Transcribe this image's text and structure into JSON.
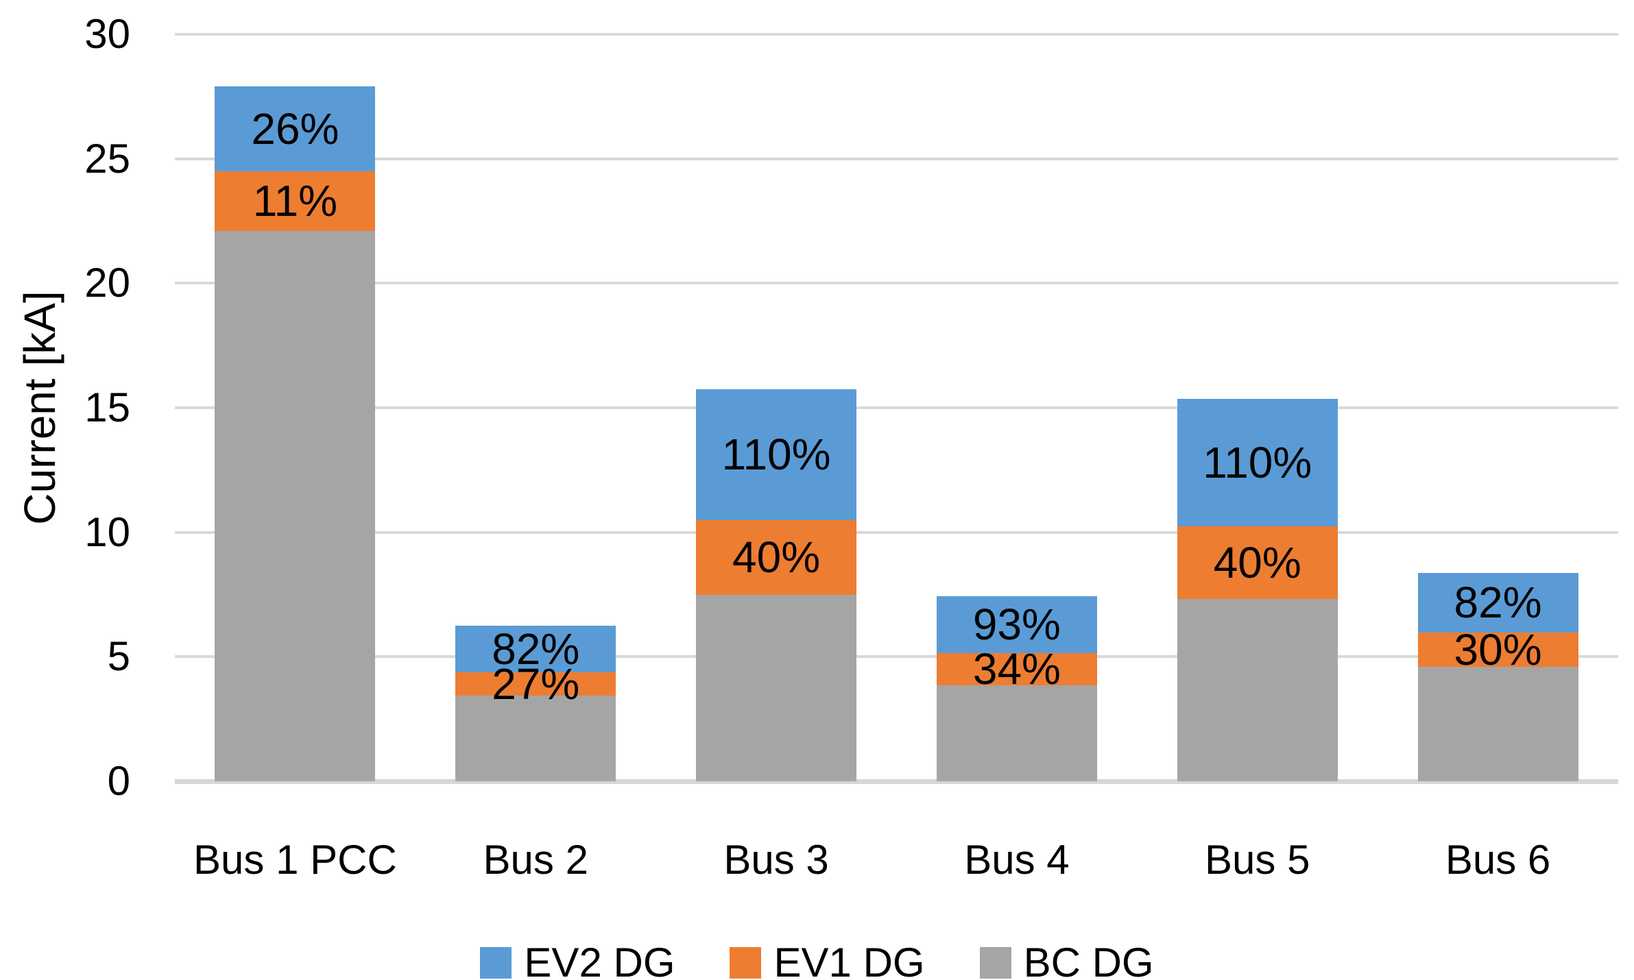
{
  "chart_data": {
    "type": "bar",
    "subtype": "stacked-overlay",
    "title": "",
    "xlabel": "",
    "ylabel": "Current [kA]",
    "ylim": [
      0,
      30
    ],
    "yticks": [
      0,
      5,
      10,
      15,
      20,
      25,
      30
    ],
    "grid": "horizontal",
    "legend_position": "bottom",
    "categories": [
      "Bus 1 PCC",
      "Bus 2",
      "Bus 3",
      "Bus 4",
      "Bus 5",
      "Bus 6"
    ],
    "series": [
      {
        "name": "EV2 DG",
        "key": "ev2",
        "color": "#5B9BD5"
      },
      {
        "name": "EV1 DG",
        "key": "ev1",
        "color": "#ED7D31"
      },
      {
        "name": "BC DG",
        "key": "bc",
        "color": "#A5A5A5"
      }
    ],
    "buses": [
      {
        "label": "Bus 1 PCC",
        "bc": 22.1,
        "ev1": 24.5,
        "ev2": 27.9,
        "ev1_pct": "11%",
        "ev2_pct": "26%"
      },
      {
        "label": "Bus 2",
        "bc": 3.44,
        "ev1": 4.37,
        "ev2": 6.26,
        "ev1_pct": "27%",
        "ev2_pct": "82%"
      },
      {
        "label": "Bus 3",
        "bc": 7.5,
        "ev1": 10.5,
        "ev2": 15.75,
        "ev1_pct": "40%",
        "ev2_pct": "110%"
      },
      {
        "label": "Bus 4",
        "bc": 3.85,
        "ev1": 5.16,
        "ev2": 7.43,
        "ev1_pct": "34%",
        "ev2_pct": "93%"
      },
      {
        "label": "Bus 5",
        "bc": 7.31,
        "ev1": 10.23,
        "ev2": 15.35,
        "ev1_pct": "40%",
        "ev2_pct": "110%"
      },
      {
        "label": "Bus 6",
        "bc": 4.6,
        "ev1": 5.98,
        "ev2": 8.37,
        "ev1_pct": "30%",
        "ev2_pct": "82%"
      }
    ],
    "colors": {
      "gridline": "#d9d9d9",
      "text": "#000000"
    }
  }
}
